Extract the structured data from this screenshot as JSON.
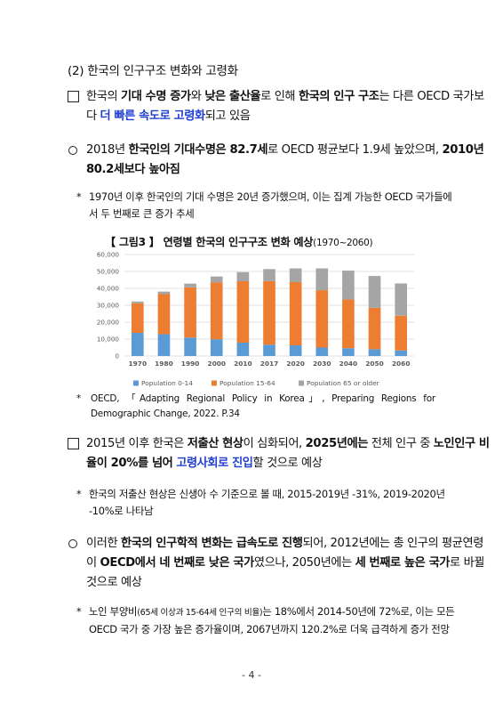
{
  "section_title": "(2) 한국의 인구구조 변화와 고령화",
  "p1": {
    "a": "한국의 ",
    "b": "기대 수명 증가",
    "c": "와 ",
    "d": "낮은 출산율",
    "e": "로 인해 ",
    "f": "한국의 인구 구조",
    "g": "는 다른 OECD 국가보다 ",
    "h": "더 빠른 속도로 고령화",
    "i": "되고 있음"
  },
  "p2": {
    "a": "2018년 ",
    "b": "한국인의 기대수명은 82.7세",
    "c": "로 OECD 평균보다 1.9세 높았으며, ",
    "d": "2010년 80.2세보다 높아짐"
  },
  "note1": {
    "marker": "*",
    "text": "1970년 이후 한국인의 기대 수명은 20년 증가했으며, 이는 집계 가능한 OECD 국가들에서 두 번째로 큰 증가 추세"
  },
  "figure": {
    "title_main": "【 그림3 】 연령별 한국의 인구구조 변화 예상",
    "title_sub": "(1970~2060)"
  },
  "chart_data": {
    "type": "bar",
    "stacked": true,
    "categories": [
      "1970",
      "1980",
      "1990",
      "2000",
      "2010",
      "2017",
      "2020",
      "2030",
      "2040",
      "2050",
      "2060"
    ],
    "series": [
      {
        "name": "Population 0-14",
        "color": "#5b9bd5",
        "values": [
          13700,
          12900,
          10900,
          9900,
          7900,
          6700,
          6300,
          5000,
          4600,
          4000,
          3300
        ]
      },
      {
        "name": "Population 15-64",
        "color": "#ed7d31",
        "values": [
          17500,
          23700,
          29700,
          33700,
          36300,
          37600,
          37400,
          33900,
          28800,
          24500,
          20500
        ]
      },
      {
        "name": "Population 65 or older",
        "color": "#a5a5a5",
        "values": [
          1000,
          1500,
          2200,
          3400,
          5400,
          7100,
          8100,
          12900,
          17100,
          18800,
          19100
        ]
      }
    ],
    "yticks": [
      "60,000",
      "50,000",
      "40,000",
      "30,000",
      "20,000",
      "10,000",
      "0"
    ],
    "ylim": [
      0,
      60000
    ],
    "grid": true,
    "legend_position": "bottom"
  },
  "source": {
    "marker": "*",
    "text": "OECD, 「Adapting Regional Policy in Korea」, Preparing Regions for Demographic Change, 2022. P.34"
  },
  "p3": {
    "a": "2015년 이후 한국은 ",
    "b": "저출산 현상",
    "c": "이 심화되어, ",
    "d": "2025년에는",
    "e": " 전체 인구 중 ",
    "f": "노인인구 비율이 20%를 넘어",
    "g": " ",
    "h": "고령사회로 진입",
    "i": "할 것으로 예상"
  },
  "note2": {
    "marker": "*",
    "text": "한국의 저출산 현상은 신생아 수 기준으로 볼 때, 2015-2019년 -31%, 2019-2020년 -10%로 나타남"
  },
  "p4": {
    "a": "이러한 ",
    "b": "한국의 인구학적 변화는 급속도로 진행",
    "c": "되어, 2012년에는 총 인구의 평균연령이 ",
    "d": "OECD에서 네 번째로 낮은 국가",
    "e": "였으나, 2050년에는 ",
    "f": "세 번째로 높은 국가",
    "g": "로 바뀔 것으로 예상"
  },
  "note3": {
    "marker": "*",
    "a": "노인 부양비",
    "b": "(65세 이상과 15-64세 인구의 비율)",
    "c": "는 18%에서 2014-50년에 72%로, 이는 모든 OECD 국가 중 가장 높은 증가율이며, 2067년까지 120.2%로 더욱 급격하게 증가 전망"
  },
  "page_number": "- 4 -"
}
